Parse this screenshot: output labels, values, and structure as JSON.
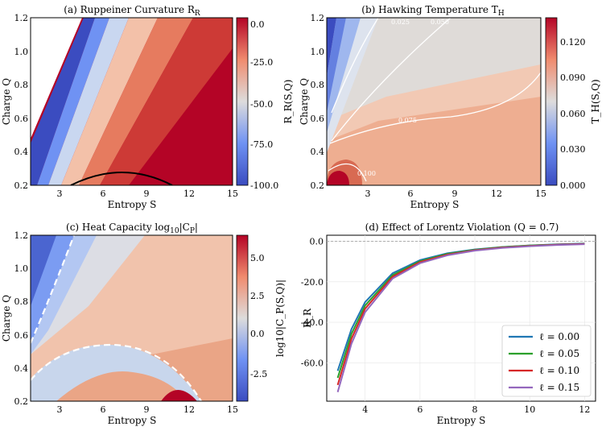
{
  "chart_data": [
    {
      "id": "a",
      "type": "heatmap",
      "title": "(a) Ruppeiner Curvature R",
      "title_sub": "R",
      "xlabel": "Entropy S",
      "ylabel": "Charge Q",
      "xlim": [
        1,
        15
      ],
      "ylim": [
        0.2,
        1.2
      ],
      "xticks": [
        "3",
        "6",
        "9",
        "12",
        "15"
      ],
      "yticks": [
        "0.2",
        "0.4",
        "0.6",
        "0.8",
        "1.0",
        "1.2"
      ],
      "colorbar": {
        "label": "R_R(S,Q)",
        "ticks": [
          "0.0",
          "-25.0",
          "-50.0",
          "-75.0",
          "-100.0"
        ],
        "range": [
          -100,
          5
        ],
        "colors": [
          "#3b4cc0",
          "#6f92f3",
          "#dddcdc",
          "#f08b6e",
          "#b40426"
        ]
      },
      "contour": {
        "label": "R = 0",
        "color": "#000000"
      }
    },
    {
      "id": "b",
      "type": "heatmap",
      "title": "(b) Hawking Temperature T",
      "title_sub": "H",
      "xlabel": "Entropy S",
      "ylabel": "Charge Q",
      "xlim": [
        1,
        15
      ],
      "ylim": [
        0.2,
        1.2
      ],
      "xticks": [
        "3",
        "6",
        "9",
        "12",
        "15"
      ],
      "yticks": [
        "0.2",
        "0.4",
        "0.6",
        "0.8",
        "1.0",
        "1.2"
      ],
      "colorbar": {
        "label": "T_H(S,Q)",
        "ticks": [
          "0.000",
          "0.030",
          "0.060",
          "0.090",
          "0.120"
        ],
        "range": [
          0,
          0.14
        ],
        "colors": [
          "#3b4cc0",
          "#6f92f3",
          "#dddcdc",
          "#f08b6e",
          "#b40426"
        ]
      },
      "contour_labels": [
        "0.025",
        "0.050",
        "0.075",
        "0.100"
      ]
    },
    {
      "id": "c",
      "type": "heatmap",
      "title": "(c) Heat Capacity log",
      "title_sub": "10",
      "title_tail": "|C",
      "title_tail_sub": "P",
      "title_end": "|",
      "xlabel": "Entropy S",
      "ylabel": "Charge Q",
      "xlim": [
        1,
        15
      ],
      "ylim": [
        0.2,
        1.2
      ],
      "xticks": [
        "3",
        "6",
        "9",
        "12",
        "15"
      ],
      "yticks": [
        "0.2",
        "0.4",
        "0.6",
        "0.8",
        "1.0",
        "1.2"
      ],
      "colorbar": {
        "label": "log10|C_P(S,Q)|",
        "ticks": [
          "-2.5",
          "0.0",
          "2.5",
          "5.0"
        ],
        "range": [
          -4.2,
          6.5
        ],
        "colors": [
          "#3b4cc0",
          "#6f92f3",
          "#dddcdc",
          "#f08b6e",
          "#b40426"
        ]
      },
      "dashed_curves": 2
    },
    {
      "id": "d",
      "type": "line",
      "title": "(d) Effect of Lorentz Violation (Q = 0.7)",
      "xlabel": "Entropy S",
      "ylabel": "R_R",
      "xlim": [
        2.6,
        12.4
      ],
      "ylim": [
        -79,
        3
      ],
      "xticks": [
        "4",
        "6",
        "8",
        "10",
        "12"
      ],
      "yticks": [
        "0.0",
        "-20.0",
        "-40.0",
        "-60.0"
      ],
      "reference_line": 0,
      "legend_position": "lower-right",
      "series": [
        {
          "name": "ℓ = 0.00",
          "color": "#1f77b4",
          "x": [
            3.0,
            3.5,
            4.0,
            5.0,
            6.0,
            7.0,
            8.0,
            9.0,
            10.0,
            11.0,
            12.0
          ],
          "y": [
            -64.0,
            -43.4,
            -30.0,
            -15.8,
            -9.3,
            -5.9,
            -4.0,
            -2.8,
            -2.0,
            -1.5,
            -1.1
          ]
        },
        {
          "name": "ℓ = 0.05",
          "color": "#2ca02c",
          "x": [
            3.0,
            3.5,
            4.0,
            5.0,
            6.0,
            7.0,
            8.0,
            9.0,
            10.0,
            11.0,
            12.0
          ],
          "y": [
            -67.5,
            -45.8,
            -31.7,
            -16.7,
            -9.8,
            -6.2,
            -4.2,
            -2.9,
            -2.1,
            -1.6,
            -1.2
          ]
        },
        {
          "name": "ℓ = 0.10",
          "color": "#d62728",
          "x": [
            3.0,
            3.5,
            4.0,
            5.0,
            6.0,
            7.0,
            8.0,
            9.0,
            10.0,
            11.0,
            12.0
          ],
          "y": [
            -71.0,
            -48.2,
            -33.3,
            -17.5,
            -10.3,
            -6.6,
            -4.4,
            -3.1,
            -2.3,
            -1.7,
            -1.3
          ]
        },
        {
          "name": "ℓ = 0.15",
          "color": "#9467bd",
          "x": [
            3.0,
            3.5,
            4.0,
            5.0,
            6.0,
            7.0,
            8.0,
            9.0,
            10.0,
            11.0,
            12.0
          ],
          "y": [
            -74.5,
            -50.6,
            -35.0,
            -18.4,
            -10.8,
            -6.9,
            -4.6,
            -3.3,
            -2.4,
            -1.8,
            -1.4
          ]
        }
      ]
    }
  ]
}
